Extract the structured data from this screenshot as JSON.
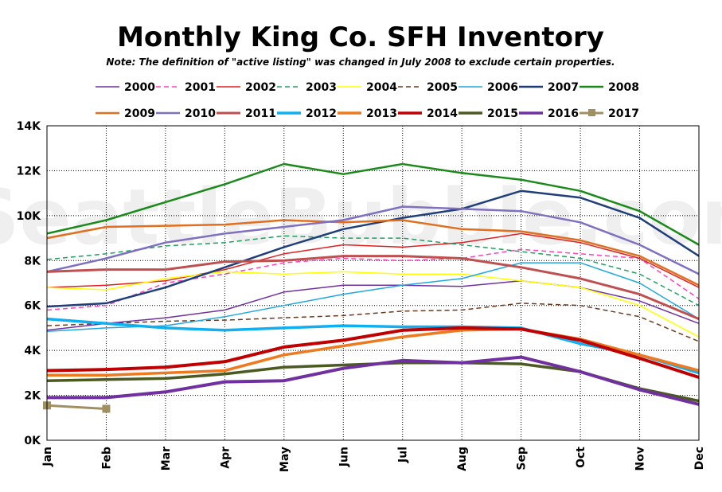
{
  "chart_data": {
    "type": "line",
    "title": "Monthly King Co. SFH Inventory",
    "subtitle": "Note: The definition of \"active listing\" was changed in July 2008 to exclude certain properties.",
    "watermark": "SeattleBubble.com",
    "xlabel": "",
    "ylabel": "",
    "categories": [
      "Jan",
      "Feb",
      "Mar",
      "Apr",
      "May",
      "Jun",
      "Jul",
      "Aug",
      "Sep",
      "Oct",
      "Nov",
      "Dec"
    ],
    "ylim": [
      0,
      14000
    ],
    "yticks": [
      {
        "value": 0,
        "label": "0K"
      },
      {
        "value": 2000,
        "label": "2K"
      },
      {
        "value": 4000,
        "label": "4K"
      },
      {
        "value": 6000,
        "label": "6K"
      },
      {
        "value": 8000,
        "label": "8K"
      },
      {
        "value": 10000,
        "label": "10K"
      },
      {
        "value": 12000,
        "label": "12K"
      },
      {
        "value": 14000,
        "label": "14K"
      }
    ],
    "grid": true,
    "legend_position": "top",
    "series": [
      {
        "name": "2000",
        "color": "#7030a0",
        "width": 1.5,
        "dash": "",
        "values": [
          4900,
          5200,
          5450,
          5800,
          6600,
          6900,
          6900,
          6850,
          7100,
          6800,
          6200,
          5200
        ]
      },
      {
        "name": "2001",
        "color": "#ff40c0",
        "width": 1.5,
        "dash": "6,4",
        "values": [
          5800,
          6000,
          7000,
          7400,
          7900,
          8100,
          8000,
          8100,
          8500,
          8300,
          8100,
          6300
        ]
      },
      {
        "name": "2002",
        "color": "#e02020",
        "width": 1.5,
        "dash": "",
        "values": [
          6800,
          6900,
          7100,
          7600,
          8300,
          8700,
          8600,
          8800,
          9200,
          8800,
          8100,
          6800
        ]
      },
      {
        "name": "2003",
        "color": "#20a060",
        "width": 1.5,
        "dash": "6,4",
        "values": [
          8050,
          8300,
          8650,
          8800,
          9100,
          9000,
          9000,
          8700,
          8400,
          8100,
          7400,
          6000
        ]
      },
      {
        "name": "2004",
        "color": "#ffff00",
        "width": 1.5,
        "dash": "",
        "values": [
          6800,
          6700,
          7200,
          7500,
          7400,
          7500,
          7400,
          7400,
          7100,
          6800,
          6000,
          4600
        ]
      },
      {
        "name": "2005",
        "color": "#6b3a1e",
        "width": 1.5,
        "dash": "6,4",
        "values": [
          5100,
          5200,
          5300,
          5350,
          5450,
          5550,
          5750,
          5800,
          6100,
          6000,
          5500,
          4400
        ]
      },
      {
        "name": "2006",
        "color": "#20a8e0",
        "width": 1.5,
        "dash": "",
        "values": [
          4850,
          5000,
          5100,
          5500,
          6000,
          6500,
          6900,
          7200,
          7900,
          7900,
          7000,
          5400
        ]
      },
      {
        "name": "2007",
        "color": "#1f3f7a",
        "width": 2.5,
        "dash": "",
        "values": [
          5950,
          6100,
          6800,
          7700,
          8600,
          9400,
          9900,
          10300,
          11100,
          10800,
          9900,
          8200
        ]
      },
      {
        "name": "2008",
        "color": "#1a8a1a",
        "width": 2.5,
        "dash": "",
        "values": [
          9200,
          9800,
          10600,
          11400,
          12300,
          11850,
          12300,
          11900,
          11600,
          11100,
          10200,
          8700
        ]
      },
      {
        "name": "2009",
        "color": "#e07020",
        "width": 2.5,
        "dash": "",
        "values": [
          9000,
          9500,
          9550,
          9600,
          9800,
          9700,
          9800,
          9400,
          9300,
          8900,
          8200,
          6900
        ]
      },
      {
        "name": "2010",
        "color": "#8070c0",
        "width": 2.5,
        "dash": "",
        "values": [
          7500,
          8100,
          8800,
          9200,
          9500,
          9800,
          10400,
          10300,
          10200,
          9700,
          8700,
          7400
        ]
      },
      {
        "name": "2011",
        "color": "#c05050",
        "width": 3,
        "dash": "",
        "values": [
          7500,
          7600,
          7600,
          7950,
          8000,
          8200,
          8200,
          8100,
          7700,
          7200,
          6500,
          5400
        ]
      },
      {
        "name": "2012",
        "color": "#10b0f0",
        "width": 3.5,
        "dash": "",
        "values": [
          5400,
          5200,
          5000,
          4900,
          5000,
          5100,
          5050,
          5050,
          5000,
          4300,
          3800,
          3000
        ]
      },
      {
        "name": "2013",
        "color": "#ee7a20",
        "width": 3.5,
        "dash": "",
        "values": [
          2900,
          2900,
          3000,
          3100,
          3800,
          4200,
          4600,
          4900,
          4950,
          4500,
          3800,
          3100
        ]
      },
      {
        "name": "2014",
        "color": "#c00000",
        "width": 4,
        "dash": "",
        "values": [
          3100,
          3150,
          3250,
          3500,
          4150,
          4450,
          4900,
          5000,
          4950,
          4450,
          3650,
          2800
        ]
      },
      {
        "name": "2015",
        "color": "#4a5a20",
        "width": 3.5,
        "dash": "",
        "values": [
          2650,
          2700,
          2750,
          2950,
          3250,
          3350,
          3450,
          3450,
          3400,
          3050,
          2300,
          1750
        ]
      },
      {
        "name": "2016",
        "color": "#7030a0",
        "width": 4,
        "dash": "",
        "values": [
          1900,
          1900,
          2150,
          2600,
          2650,
          3200,
          3550,
          3450,
          3700,
          3050,
          2250,
          1600
        ]
      },
      {
        "name": "2017",
        "color": "#a09060",
        "width": 3,
        "dash": "",
        "marker": true,
        "values": [
          1550,
          1400,
          null,
          null,
          null,
          null,
          null,
          null,
          null,
          null,
          null,
          null
        ]
      }
    ]
  }
}
